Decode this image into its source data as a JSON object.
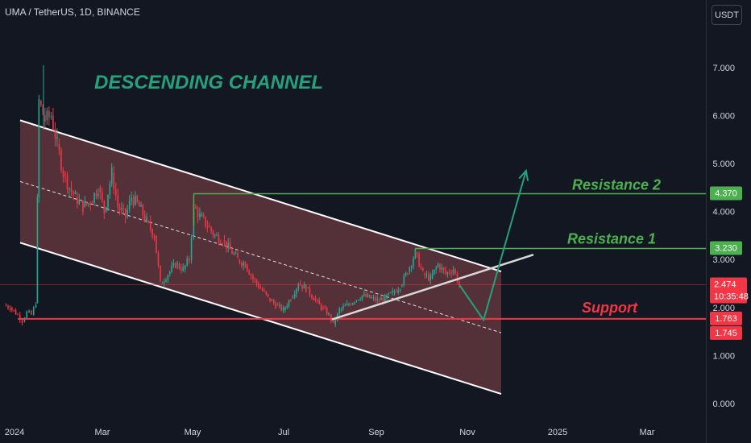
{
  "header": {
    "symbol": "UMA / TetherUS, 1D, BINANCE",
    "currency_button": "USDT"
  },
  "colors": {
    "background": "#131722",
    "channel_fill": "#6b3b41",
    "channel_border": "#ffffff",
    "bull_candle": "#22ab94",
    "bear_candle": "#f23645",
    "resistance": "#4caf50",
    "support": "#f23645",
    "projection_arrow": "#26a17b",
    "title": "#26a17b"
  },
  "chart_data": {
    "type": "line",
    "title": "DESCENDING CHANNEL",
    "y_axis": {
      "ticks": [
        "7.000",
        "6.000",
        "5.000",
        "4.000",
        "3.000",
        "2.000",
        "1.000",
        "0.000"
      ],
      "ylim": [
        0,
        7
      ]
    },
    "x_axis": {
      "ticks": [
        "2024",
        "Mar",
        "May",
        "Jul",
        "Sep",
        "Nov",
        "2025",
        "Mar"
      ]
    },
    "series": [
      {
        "points": [
          [
            "2024-01-01",
            2.05
          ],
          [
            "2024-01-05",
            2.0
          ],
          [
            "2024-01-10",
            1.85
          ],
          [
            "2024-01-13",
            1.72
          ],
          [
            "2024-01-16",
            1.9
          ],
          [
            "2024-01-19",
            1.85
          ],
          [
            "2024-01-22",
            2.1
          ],
          [
            "2024-01-24",
            6.3
          ],
          [
            "2024-01-28",
            5.9
          ],
          [
            "2024-02-01",
            6.0
          ],
          [
            "2024-02-05",
            5.4
          ],
          [
            "2024-02-09",
            4.8
          ],
          [
            "2024-02-13",
            4.5
          ],
          [
            "2024-02-17",
            4.3
          ],
          [
            "2024-02-22",
            4.1
          ],
          [
            "2024-02-27",
            4.2
          ],
          [
            "2024-03-03",
            4.5
          ],
          [
            "2024-03-07",
            4.0
          ],
          [
            "2024-03-12",
            4.8
          ],
          [
            "2024-03-16",
            4.1
          ],
          [
            "2024-03-21",
            3.9
          ],
          [
            "2024-03-25",
            4.3
          ],
          [
            "2024-03-30",
            4.1
          ],
          [
            "2024-04-04",
            3.8
          ],
          [
            "2024-04-09",
            3.5
          ],
          [
            "2024-04-13",
            2.5
          ],
          [
            "2024-04-18",
            2.7
          ],
          [
            "2024-04-23",
            2.9
          ],
          [
            "2024-04-28",
            2.8
          ],
          [
            "2024-05-02",
            3.0
          ],
          [
            "2024-05-05",
            4.1
          ],
          [
            "2024-05-09",
            3.9
          ],
          [
            "2024-05-14",
            3.7
          ],
          [
            "2024-05-19",
            3.5
          ],
          [
            "2024-05-24",
            3.4
          ],
          [
            "2024-05-29",
            3.2
          ],
          [
            "2024-06-03",
            3.0
          ],
          [
            "2024-06-08",
            2.9
          ],
          [
            "2024-06-13",
            2.6
          ],
          [
            "2024-06-18",
            2.4
          ],
          [
            "2024-06-23",
            2.2
          ],
          [
            "2024-06-28",
            2.05
          ],
          [
            "2024-07-03",
            1.95
          ],
          [
            "2024-07-08",
            2.2
          ],
          [
            "2024-07-13",
            2.5
          ],
          [
            "2024-07-18",
            2.4
          ],
          [
            "2024-07-23",
            2.2
          ],
          [
            "2024-07-28",
            2.0
          ],
          [
            "2024-08-02",
            1.85
          ],
          [
            "2024-08-05",
            1.65
          ],
          [
            "2024-08-09",
            1.95
          ],
          [
            "2024-08-14",
            2.05
          ],
          [
            "2024-08-19",
            2.15
          ],
          [
            "2024-08-24",
            2.25
          ],
          [
            "2024-08-29",
            2.2
          ],
          [
            "2024-09-03",
            2.15
          ],
          [
            "2024-09-08",
            2.2
          ],
          [
            "2024-09-13",
            2.3
          ],
          [
            "2024-09-18",
            2.45
          ],
          [
            "2024-09-23",
            2.75
          ],
          [
            "2024-09-28",
            3.15
          ],
          [
            "2024-10-03",
            2.7
          ],
          [
            "2024-10-08",
            2.6
          ],
          [
            "2024-10-13",
            2.9
          ],
          [
            "2024-10-18",
            2.7
          ],
          [
            "2024-10-23",
            2.8
          ],
          [
            "2024-10-27",
            2.474
          ]
        ]
      }
    ],
    "levels": [
      {
        "name": "Resistance 2",
        "value": 4.37,
        "label": "4.370"
      },
      {
        "name": "Resistance 1",
        "value": 3.23,
        "label": "3.230"
      },
      {
        "name": "Support",
        "value": 1.763,
        "label": "1.763"
      }
    ],
    "current_price": {
      "value": 2.474,
      "label": "2.474",
      "countdown": "10:35:48"
    },
    "extra_label": {
      "value": 1.745,
      "label": "1.745"
    },
    "projection": [
      [
        "2024-10-27",
        2.474
      ],
      [
        "2024-11-12",
        1.74
      ],
      [
        "2024-12-10",
        4.85
      ]
    ]
  }
}
